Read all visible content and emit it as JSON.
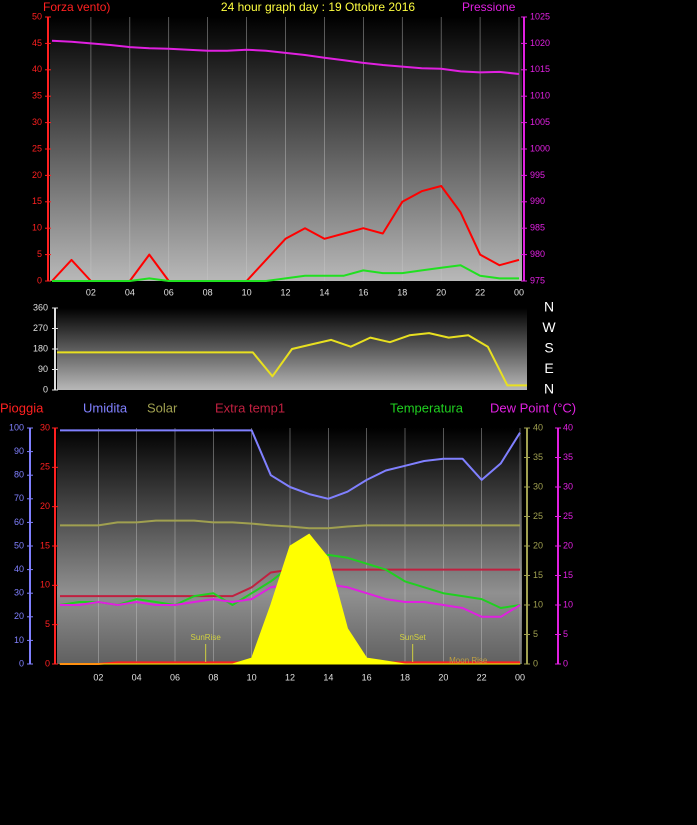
{
  "chart_data": [
    {
      "type": "line",
      "title": "24 hour graph day : 19 Ottobre 2016",
      "ylabel": "Forza vento)",
      "y2label": "Pressione",
      "xlim": [
        0,
        24
      ],
      "xticks": [
        {
          "value": 2,
          "label": "02"
        },
        {
          "value": 4,
          "label": "04"
        },
        {
          "value": 6,
          "label": "06"
        },
        {
          "value": 8,
          "label": "08"
        },
        {
          "value": 10,
          "label": "10"
        },
        12,
        14,
        16,
        18,
        20,
        22,
        {
          "value": 24,
          "label": "00"
        }
      ],
      "ylim": [
        0,
        50
      ],
      "yticks": [
        0,
        5,
        10,
        15,
        20,
        25,
        30,
        35,
        40,
        45,
        50
      ],
      "y2lim": [
        975,
        1025
      ],
      "y2ticks": [
        975,
        980,
        985,
        990,
        995,
        1000,
        1005,
        1010,
        1015,
        1020,
        1025
      ],
      "grid": true,
      "x": [
        0,
        1,
        2,
        3,
        4,
        5,
        6,
        7,
        8,
        9,
        10,
        11,
        12,
        13,
        14,
        15,
        16,
        17,
        18,
        19,
        20,
        21,
        22,
        23,
        24
      ],
      "series": [
        {
          "color": "#e020e0",
          "axis": "y2",
          "values": [
            1020.5,
            1020.3,
            1020,
            1019.7,
            1019.3,
            1019.1,
            1019,
            1018.8,
            1018.6,
            1018.6,
            1018.8,
            1018.6,
            1018.2,
            1017.8,
            1017.3,
            1016.8,
            1016.3,
            1015.9,
            1015.6,
            1015.3,
            1015.2,
            1014.7,
            1014.5,
            1014.6,
            1014.2
          ]
        },
        {
          "color": "#ff0000",
          "values": [
            0,
            4,
            0,
            0,
            0,
            5,
            0,
            0,
            0,
            0,
            0,
            4,
            8,
            10,
            8,
            9,
            10,
            9,
            15,
            17,
            18,
            13,
            5,
            3,
            4
          ]
        },
        {
          "color": "#20e020",
          "values": [
            0,
            0,
            0,
            0,
            0,
            0.5,
            0,
            0,
            0,
            0,
            0,
            0,
            0.5,
            1,
            1,
            1,
            2,
            1.5,
            1.5,
            2,
            2.5,
            3,
            1,
            0.5,
            0.5
          ]
        }
      ]
    },
    {
      "type": "line",
      "xlim": [
        0,
        24
      ],
      "ylim": [
        0,
        360
      ],
      "yticks": [
        0,
        90,
        180,
        270,
        360
      ],
      "y2lim": [
        0,
        360
      ],
      "y2ticks": [
        {
          "value": 0,
          "label": "N"
        },
        {
          "value": 90,
          "label": "E"
        },
        {
          "value": 180,
          "label": "S"
        },
        {
          "value": 270,
          "label": "W"
        },
        {
          "value": 360,
          "label": "N"
        }
      ],
      "x": [
        0,
        1,
        2,
        3,
        4,
        5,
        6,
        7,
        8,
        9,
        10,
        11,
        12,
        13,
        14,
        15,
        16,
        17,
        18,
        19,
        20,
        21,
        22,
        23,
        24
      ],
      "series": [
        {
          "color": "#e8e020",
          "values": [
            165,
            165,
            165,
            165,
            165,
            165,
            165,
            165,
            165,
            165,
            165,
            60,
            180,
            200,
            220,
            190,
            230,
            210,
            240,
            250,
            230,
            240,
            190,
            20,
            20
          ]
        }
      ]
    },
    {
      "type": "line",
      "xlim": [
        0,
        24
      ],
      "xticks": [
        {
          "value": 2,
          "label": "02"
        },
        {
          "value": 4,
          "label": "04"
        },
        {
          "value": 6,
          "label": "06"
        },
        {
          "value": 8,
          "label": "08"
        },
        {
          "value": 10,
          "label": "10"
        },
        12,
        14,
        16,
        18,
        20,
        22,
        {
          "value": 24,
          "label": "00"
        }
      ],
      "ylim": [
        0,
        30
      ],
      "yticks": [
        0,
        5,
        10,
        15,
        20,
        25,
        30
      ],
      "y3lim": [
        0,
        100
      ],
      "y3ticks": [
        0,
        10,
        20,
        30,
        40,
        50,
        60,
        70,
        80,
        90,
        100
      ],
      "y2lim": [
        0,
        40
      ],
      "y2ticks": [
        0,
        5,
        10,
        15,
        20,
        25,
        30,
        35,
        40
      ],
      "y4lim": [
        0,
        40
      ],
      "y4ticks": [
        0,
        5,
        10,
        15,
        20,
        25,
        30,
        35,
        40
      ],
      "grid": true,
      "x": [
        0,
        1,
        2,
        3,
        4,
        5,
        6,
        7,
        8,
        9,
        10,
        11,
        12,
        13,
        14,
        15,
        16,
        17,
        18,
        19,
        20,
        21,
        22,
        23,
        24
      ],
      "series": [
        {
          "name": "Pioggia",
          "color": "#ff2020",
          "axis": "y",
          "values": [
            0,
            0,
            0,
            0.2,
            0.2,
            0.2,
            0.2,
            0.2,
            0.2,
            0.2,
            0.2,
            0.2,
            0.2,
            0.2,
            0.2,
            0.2,
            0.2,
            0.2,
            0.2,
            0.2,
            0.2,
            0.2,
            0.2,
            0.2,
            0.2
          ]
        },
        {
          "name": "Umidita",
          "color": "#8080ff",
          "axis": "y3",
          "values": [
            99,
            99,
            99,
            99,
            99,
            99,
            99,
            99,
            99,
            99,
            99,
            80,
            75,
            72,
            70,
            73,
            78,
            82,
            84,
            86,
            87,
            87,
            78,
            85,
            98
          ]
        },
        {
          "name": "Solar",
          "color": "#a0a050",
          "axis": "y2",
          "values": [
            23.5,
            23.5,
            23.5,
            24,
            24,
            24.3,
            24.3,
            24.3,
            24,
            24,
            23.8,
            23.5,
            23.3,
            23,
            23,
            23.3,
            23.5,
            23.5,
            23.5,
            23.5,
            23.5,
            23.5,
            23.5,
            23.5,
            23.5
          ]
        },
        {
          "name": "Extra temp1",
          "color": "#c02040",
          "axis": "y2",
          "values": [
            11.5,
            11.5,
            11.5,
            11.5,
            11.5,
            11.5,
            11.5,
            11.5,
            11.5,
            11.5,
            13,
            15.5,
            16,
            16,
            16,
            16,
            16,
            16,
            16,
            16,
            16,
            16,
            16,
            16,
            16
          ]
        },
        {
          "name": "Temperatura",
          "color": "#20d020",
          "axis": "y2",
          "values": [
            10,
            10.5,
            10.5,
            10,
            11,
            10.5,
            10,
            11.5,
            12,
            10,
            12,
            14,
            16.5,
            18,
            18.5,
            18,
            17,
            16,
            14,
            13,
            12,
            11.5,
            11,
            9.5,
            10
          ]
        },
        {
          "name": "Dew Point (°C)",
          "color": "#e020e0",
          "axis": "y4",
          "values": [
            10,
            10,
            10.5,
            10,
            10.5,
            10,
            10,
            10.5,
            11,
            10.5,
            11,
            13,
            13.5,
            13.5,
            13.5,
            13,
            12,
            11,
            10.5,
            10.5,
            10,
            9.5,
            8,
            8,
            10
          ]
        },
        {
          "color": "#ffff00",
          "axis": "y2",
          "area": true,
          "values": [
            0,
            0,
            0,
            0,
            0,
            0,
            0,
            0,
            0,
            0,
            1,
            10,
            20,
            22,
            18,
            6,
            1,
            0.5,
            0,
            0,
            0,
            0,
            0,
            0,
            0
          ]
        }
      ],
      "annotations": [
        {
          "text": "SunRise",
          "x": 7.6
        },
        {
          "text": "SunSet",
          "x": 18.4
        },
        {
          "text": "Moon Rise",
          "x": 21.3
        }
      ]
    }
  ]
}
